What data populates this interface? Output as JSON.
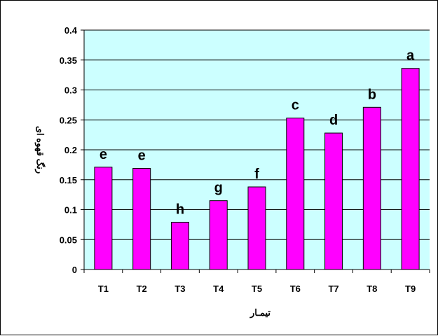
{
  "chart_data": {
    "type": "bar",
    "xlabel": "تیمـار",
    "ylabel": "رنگ قهوه ای",
    "ylim": [
      0,
      0.4
    ],
    "yticks": [
      "0",
      "0.05",
      "0.1",
      "0.15",
      "0.2",
      "0.25",
      "0.3",
      "0.35",
      "0.4"
    ],
    "grid": true,
    "legend": "none",
    "categories": [
      "T1",
      "T2",
      "T3",
      "T4",
      "T5",
      "T6",
      "T7",
      "T8",
      "T9"
    ],
    "series": [
      {
        "values": [
          0.171,
          0.169,
          0.079,
          0.115,
          0.138,
          0.253,
          0.228,
          0.271,
          0.336
        ],
        "letters": [
          "e",
          "e",
          "h",
          "g",
          "f",
          "c",
          "d",
          "b",
          "a"
        ]
      }
    ],
    "colors": {
      "plot_background": "#ccffff",
      "bar_fill": "#ff00ff",
      "bar_stroke": "#000000",
      "gridline": "#000000"
    }
  }
}
